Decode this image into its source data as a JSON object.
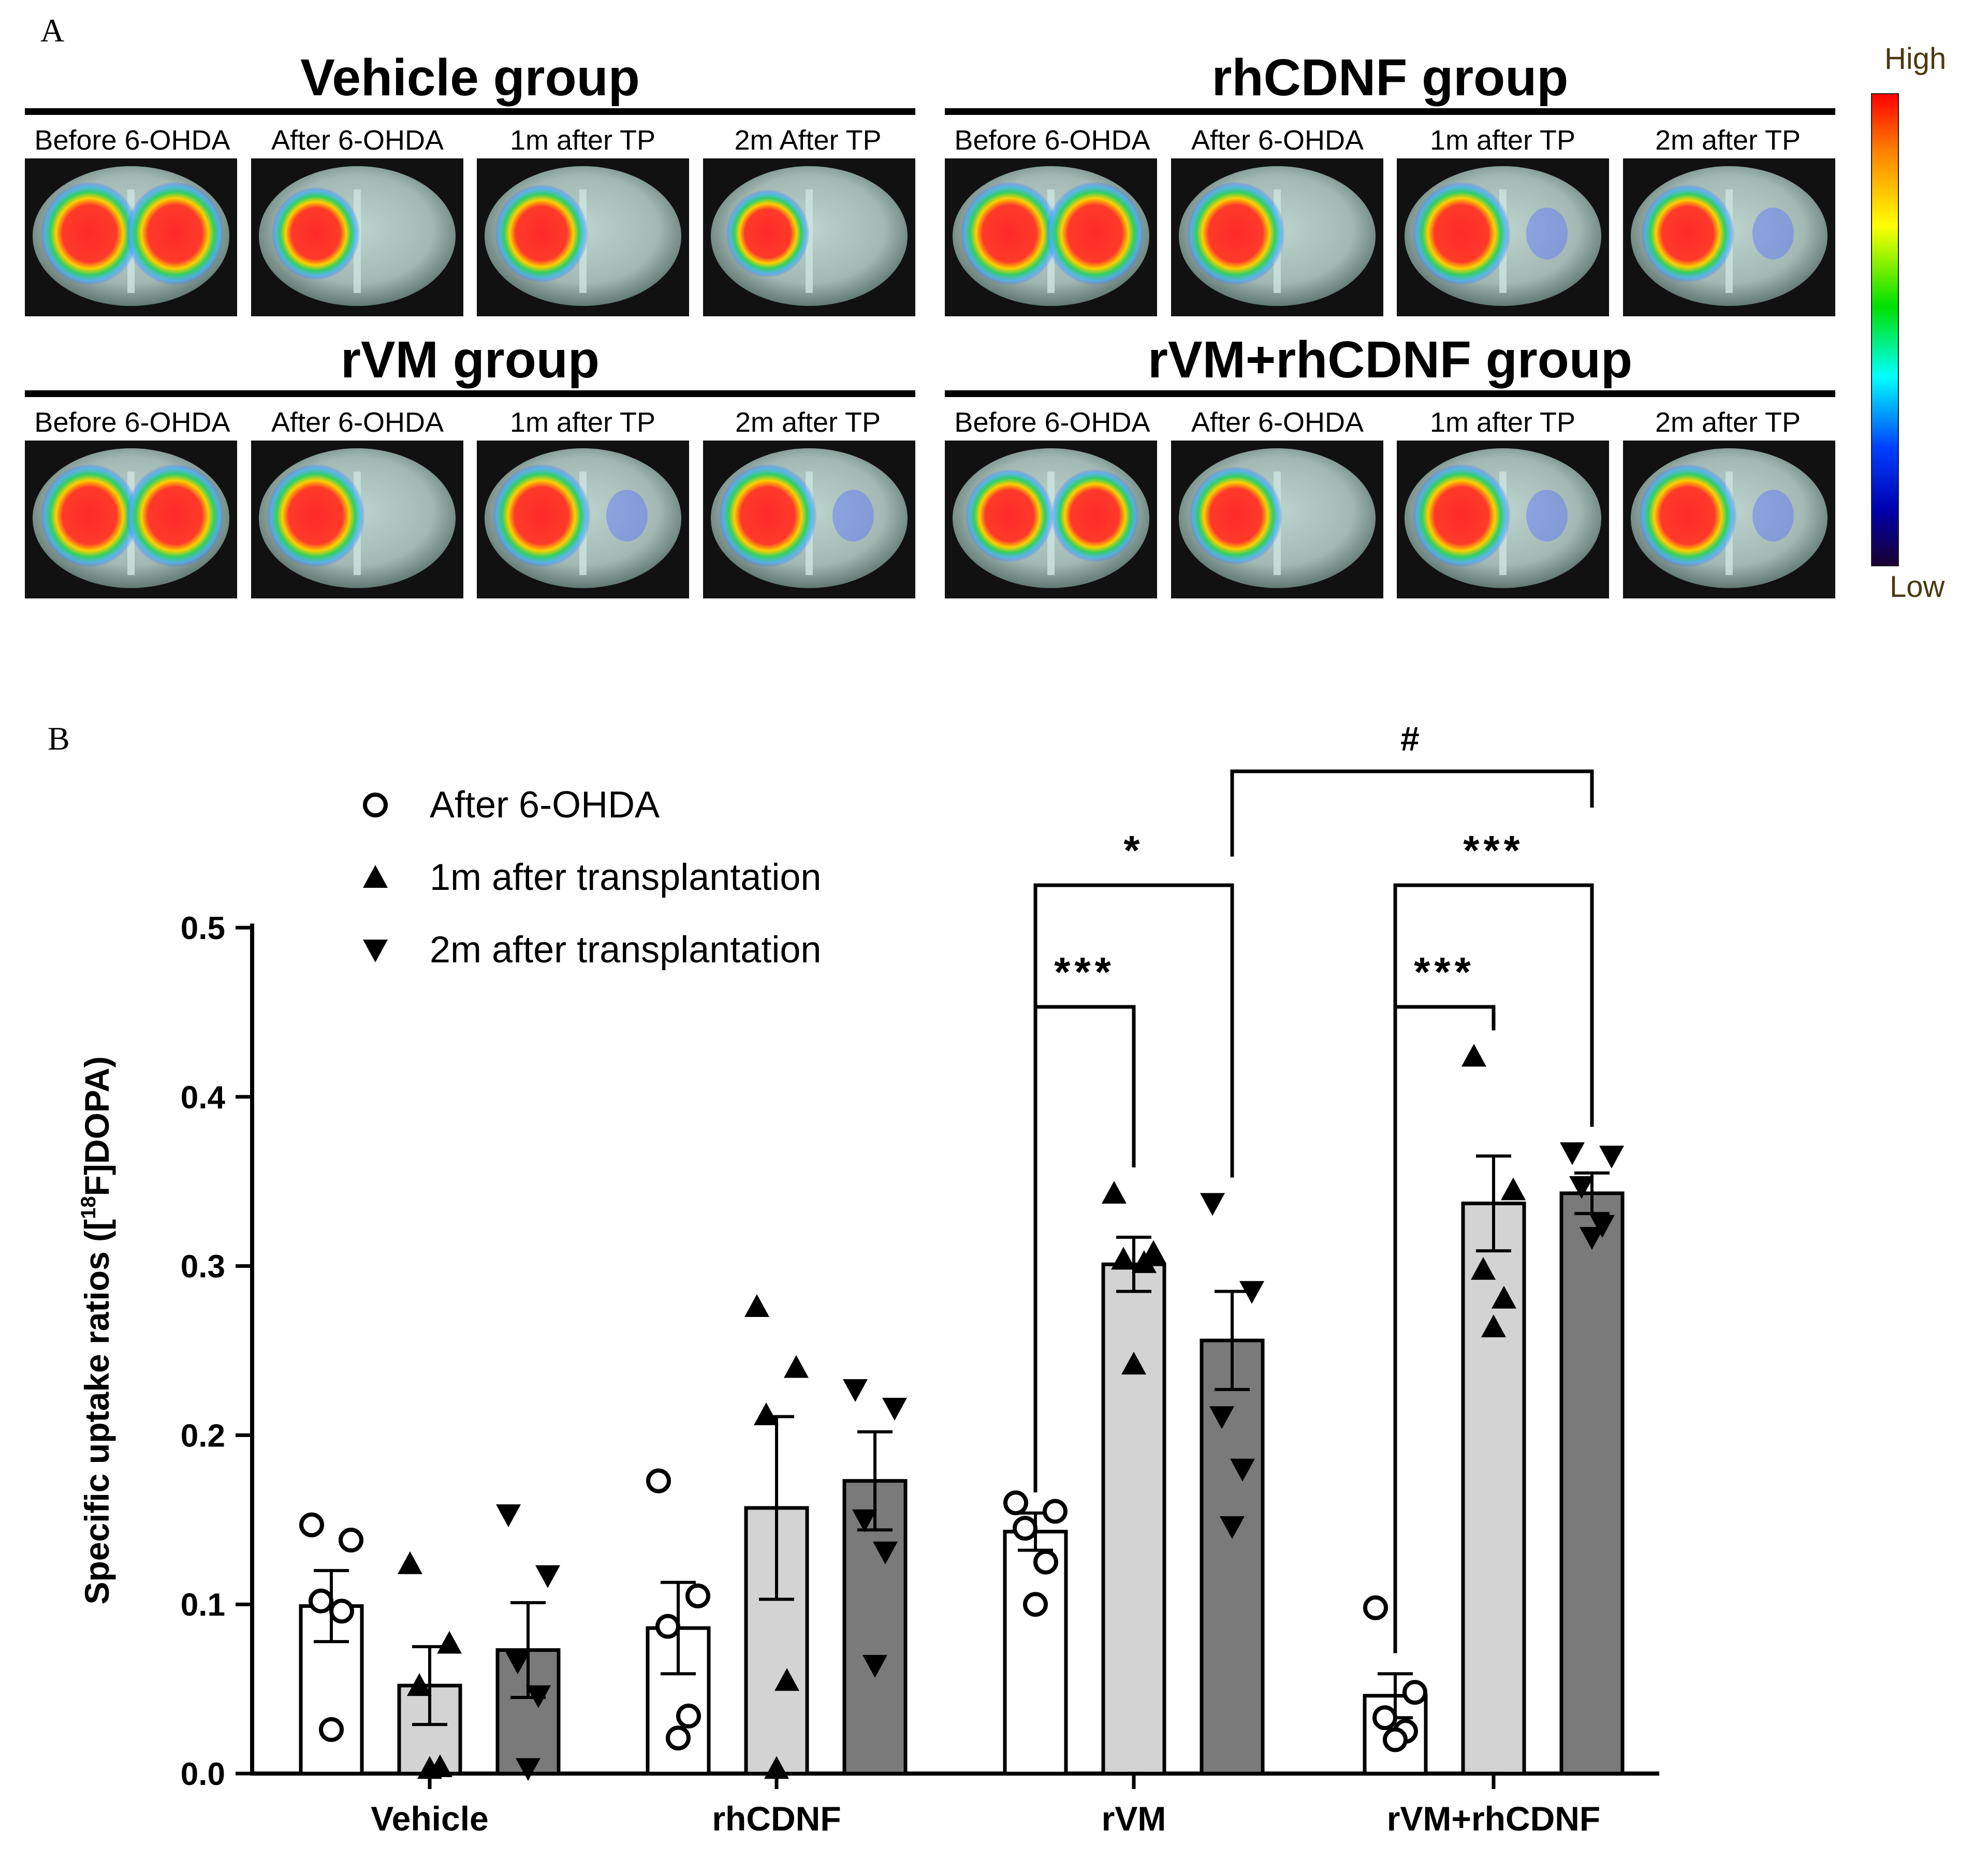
{
  "panel_a": {
    "letter": "A",
    "colorbar": {
      "high": "High",
      "low": "Low"
    },
    "groups": [
      {
        "title": "Vehicle group",
        "timepoints": [
          "Before 6-OHDA",
          "After 6-OHDA",
          "1m after TP",
          "2m After TP"
        ]
      },
      {
        "title": "rhCDNF group",
        "timepoints": [
          "Before 6-OHDA",
          "After 6-OHDA",
          "1m after TP",
          "2m after TP"
        ]
      },
      {
        "title": "rVM group",
        "timepoints": [
          "Before 6-OHDA",
          "After 6-OHDA",
          "1m after TP",
          "2m after TP"
        ]
      },
      {
        "title": "rVM+rhCDNF group",
        "timepoints": [
          "Before 6-OHDA",
          "After 6-OHDA",
          "1m after TP",
          "2m after TP"
        ]
      }
    ]
  },
  "panel_b": {
    "letter": "B"
  },
  "chart_data": {
    "type": "bar",
    "ylabel_pre": "Specific uptake ratios ([",
    "ylabel_sup": "18",
    "ylabel_post": "F]DOPA)",
    "ylim": [
      0,
      0.5
    ],
    "yticks": [
      "0.0",
      "0.1",
      "0.2",
      "0.3",
      "0.4",
      "0.5"
    ],
    "categories": [
      "Vehicle",
      "rhCDNF",
      "rVM",
      "rVM+rhCDNF"
    ],
    "colors": {
      "After 6-OHDA": "#ffffff",
      "1m after transplantation": "#d3d3d3",
      "2m after transplantation": "#7a7a7a"
    },
    "series": [
      {
        "name": "After 6-OHDA",
        "marker": "circle",
        "values": [
          0.099,
          0.086,
          0.143,
          0.046
        ],
        "sem": [
          0.021,
          0.027,
          0.011,
          0.013
        ],
        "points": [
          [
            0.147,
            0.138,
            0.102,
            0.096,
            0.026
          ],
          [
            0.173,
            0.105,
            0.087,
            0.034,
            0.021
          ],
          [
            0.16,
            0.155,
            0.145,
            0.125,
            0.1
          ],
          [
            0.098,
            0.048,
            0.033,
            0.025,
            0.02
          ]
        ]
      },
      {
        "name": "1m after transplantation",
        "marker": "triangle-up",
        "values": [
          0.052,
          0.157,
          0.301,
          0.337
        ],
        "sem": [
          0.023,
          0.054,
          0.016,
          0.028
        ],
        "points": [
          [
            0.124,
            0.077,
            0.052,
            0.004,
            0.003
          ],
          [
            0.276,
            0.24,
            0.212,
            0.055,
            0.003
          ],
          [
            0.343,
            0.308,
            0.304,
            0.302,
            0.242
          ],
          [
            0.424,
            0.345,
            0.298,
            0.281,
            0.264
          ]
        ]
      },
      {
        "name": "2m after transplantation",
        "marker": "triangle-down",
        "values": [
          0.073,
          0.173,
          0.256,
          0.343
        ],
        "sem": [
          0.028,
          0.029,
          0.029,
          0.012
        ],
        "points": [
          [
            0.153,
            0.117,
            0.066,
            0.046,
            0.003
          ],
          [
            0.227,
            0.216,
            0.15,
            0.131,
            0.064
          ],
          [
            0.337,
            0.285,
            0.211,
            0.18,
            0.146
          ],
          [
            0.367,
            0.365,
            0.347,
            0.324,
            0.317
          ]
        ]
      }
    ],
    "significance": [
      {
        "label": "***",
        "from": [
          2,
          0
        ],
        "to": [
          2,
          1
        ]
      },
      {
        "label": "*",
        "from": [
          2,
          0
        ],
        "to": [
          2,
          2
        ]
      },
      {
        "label": "***",
        "from": [
          3,
          0
        ],
        "to": [
          3,
          1
        ]
      },
      {
        "label": "***",
        "from": [
          3,
          0
        ],
        "to": [
          3,
          2
        ]
      },
      {
        "label": "#",
        "from": [
          2,
          2
        ],
        "to": [
          3,
          2
        ]
      }
    ]
  }
}
